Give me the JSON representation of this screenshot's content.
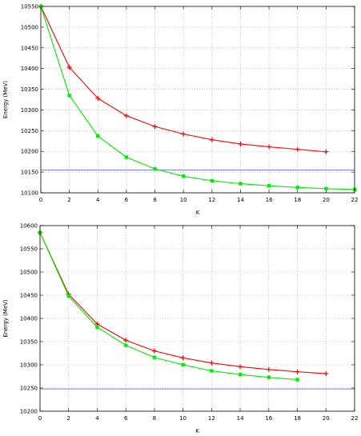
{
  "chart_data": [
    {
      "type": "line",
      "title": "",
      "xlabel": "K",
      "ylabel": "Energy (MeV)",
      "xlim": [
        0,
        22
      ],
      "ylim": [
        10100,
        10550
      ],
      "xticks": [
        0,
        2,
        4,
        6,
        8,
        10,
        12,
        14,
        16,
        18,
        20,
        22
      ],
      "yticks": [
        10100,
        10150,
        10200,
        10250,
        10300,
        10350,
        10400,
        10450,
        10500,
        10550
      ],
      "grid": true,
      "legend": "none",
      "series": [
        {
          "color": "#ff0000",
          "marker": "plus",
          "x": [
            0,
            2,
            4,
            6,
            8,
            10,
            12,
            14,
            16,
            18,
            20
          ],
          "y": [
            10550,
            10403,
            10328,
            10286,
            10260,
            10242,
            10228,
            10218,
            10211,
            10205,
            10199
          ]
        },
        {
          "color": "#00ee00",
          "marker": "square",
          "x": [
            0,
            2,
            4,
            6,
            8,
            10,
            12,
            14,
            16,
            18,
            20,
            22
          ],
          "y": [
            10550,
            10335,
            10237,
            10186,
            10158,
            10140,
            10129,
            10122,
            10117,
            10113,
            10110,
            10108
          ]
        }
      ],
      "hlines": [
        {
          "y": 10155,
          "color": "#5555ff"
        }
      ]
    },
    {
      "type": "line",
      "title": "",
      "xlabel": "K",
      "ylabel": "Energy (MeV)",
      "xlim": [
        0,
        22
      ],
      "ylim": [
        10200,
        10600
      ],
      "xticks": [
        0,
        2,
        4,
        6,
        8,
        10,
        12,
        14,
        16,
        18,
        20,
        22
      ],
      "yticks": [
        10200,
        10250,
        10300,
        10350,
        10400,
        10450,
        10500,
        10550,
        10600
      ],
      "grid": true,
      "legend": "none",
      "series": [
        {
          "color": "#ff0000",
          "marker": "plus",
          "x": [
            0,
            2,
            4,
            6,
            8,
            10,
            12,
            14,
            16,
            18,
            20
          ],
          "y": [
            10585,
            10452,
            10388,
            10353,
            10330,
            10315,
            10304,
            10296,
            10290,
            10285,
            10281
          ]
        },
        {
          "color": "#00ee00",
          "marker": "square",
          "x": [
            0,
            2,
            4,
            6,
            8,
            10,
            12,
            14,
            16,
            18
          ],
          "y": [
            10585,
            10448,
            10381,
            10342,
            10316,
            10300,
            10287,
            10279,
            10273,
            10268
          ]
        }
      ],
      "hlines": [
        {
          "y": 10248,
          "color": "#5555ff"
        }
      ]
    }
  ]
}
